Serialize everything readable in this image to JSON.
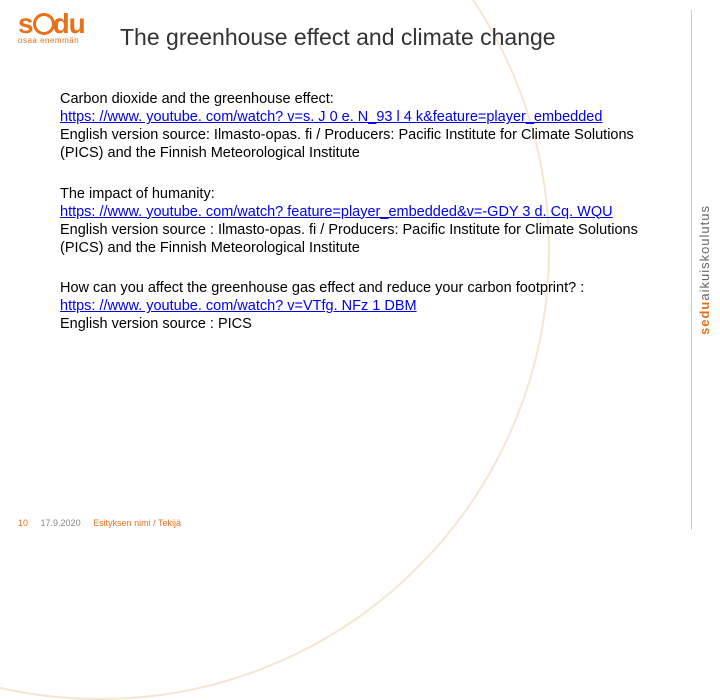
{
  "logo": {
    "text": "sedu",
    "sub": "osaa enemmän"
  },
  "right_brand": {
    "b1": "sedu",
    "b2": "aikuiskoulutus"
  },
  "title": "The greenhouse effect and climate change",
  "blocks": [
    {
      "intro": "Carbon dioxide and the greenhouse effect:",
      "link": "https: //www. youtube. com/watch? v=s. J 0 e. N_93 l 4 k&feature=player_embedded",
      "tail": "English version source: Ilmasto-opas. fi / Producers: Pacific Institute for Climate Solutions (PICS) and the Finnish Meteorological Institute"
    },
    {
      "intro": "The impact of humanity:",
      "link": "https: //www. youtube. com/watch? feature=player_embedded&v=-GDY 3 d. Cq. WQU",
      "tail": "English version source : Ilmasto-opas. fi / Producers: Pacific Institute for Climate Solutions (PICS) and the Finnish Meteorological Institute"
    },
    {
      "intro": "How can you affect the greenhouse gas effect and reduce your carbon footprint? :",
      "link": "https: //www. youtube. com/watch? v=VTfg. NFz 1 DBM",
      "tail": "English version source : PICS"
    }
  ],
  "footer": {
    "page": "10",
    "date": "17.9.2020",
    "subtitle": "Esityksen nimi / Tekijä"
  },
  "colors": {
    "accent": "#e8701a",
    "link": "#0000ee",
    "text": "#000000"
  }
}
